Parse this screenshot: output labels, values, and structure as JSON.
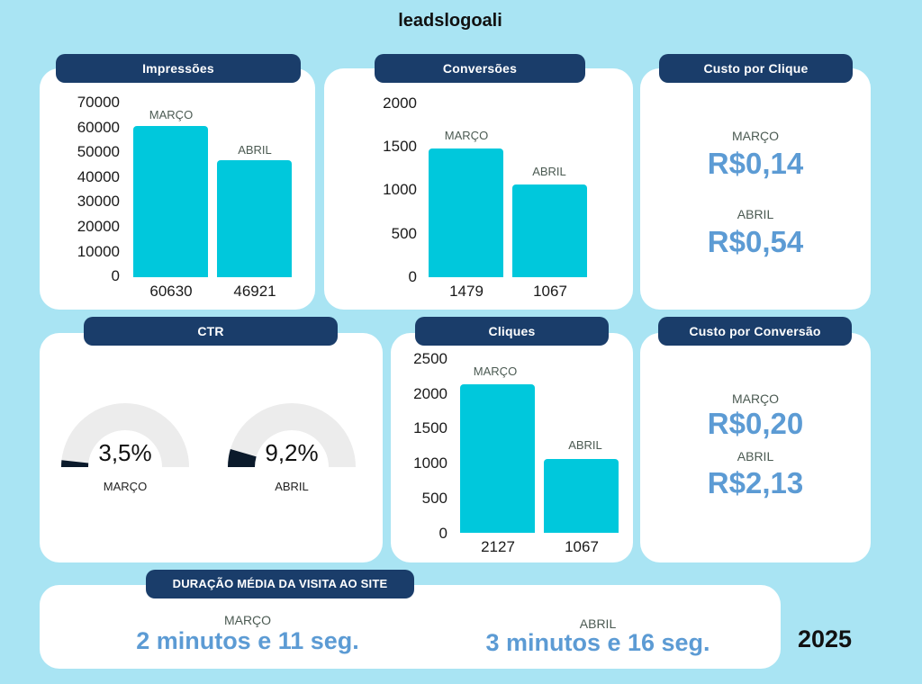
{
  "brand": "leadslogoali",
  "year": "2025",
  "impressoes": {
    "title": "Impressões",
    "yticks": [
      "70000",
      "60000",
      "50000",
      "40000",
      "30000",
      "20000",
      "10000",
      "0"
    ],
    "march_label": "MARÇO",
    "april_label": "ABRIL",
    "march_value": "60630",
    "april_value": "46921"
  },
  "conversoes": {
    "title": "Conversões",
    "yticks": [
      "2000",
      "1500",
      "1000",
      "500",
      "0"
    ],
    "march_label": "MARÇO",
    "april_label": "ABRIL",
    "march_value": "1479",
    "april_value": "1067"
  },
  "cpc": {
    "title": "Custo por Clique",
    "march_label": "MARÇO",
    "march_value": "R$0,14",
    "april_label": "ABRIL",
    "april_value": "R$0,54"
  },
  "ctr": {
    "title": "CTR",
    "march_value": "3,5%",
    "march_label": "MARÇO",
    "april_value": "9,2%",
    "april_label": "ABRIL"
  },
  "cliques": {
    "title": "Cliques",
    "yticks": [
      "2500",
      "2000",
      "1500",
      "1000",
      "500",
      "0"
    ],
    "march_label": "MARÇO",
    "april_label": "ABRIL",
    "march_value": "2127",
    "april_value": "1067"
  },
  "cpconv": {
    "title": "Custo por Conversão",
    "march_label": "MARÇO",
    "march_value": "R$0,20",
    "april_label": "ABRIL",
    "april_value": "R$2,13"
  },
  "duracao": {
    "title": "DURAÇÃO MÉDIA DA VISITA AO SITE",
    "march_label": "MARÇO",
    "march_value": "2 minutos e 11 seg.",
    "april_label": "ABRIL",
    "april_value": "3 minutos e 16 seg."
  },
  "chart_data": [
    {
      "type": "bar",
      "title": "Impressões",
      "categories": [
        "MARÇO",
        "ABRIL"
      ],
      "values": [
        60630,
        46921
      ],
      "ylim": [
        0,
        70000
      ]
    },
    {
      "type": "bar",
      "title": "Conversões",
      "categories": [
        "MARÇO",
        "ABRIL"
      ],
      "values": [
        1479,
        1067
      ],
      "ylim": [
        0,
        2000
      ]
    },
    {
      "type": "bar",
      "title": "Cliques",
      "categories": [
        "MARÇO",
        "ABRIL"
      ],
      "values": [
        2127,
        1067
      ],
      "ylim": [
        0,
        2500
      ]
    }
  ],
  "colors": {
    "background": "#a9e4f3",
    "pill": "#1a3d6a",
    "bar": "#00c8dc",
    "money": "#5c9bd4"
  }
}
